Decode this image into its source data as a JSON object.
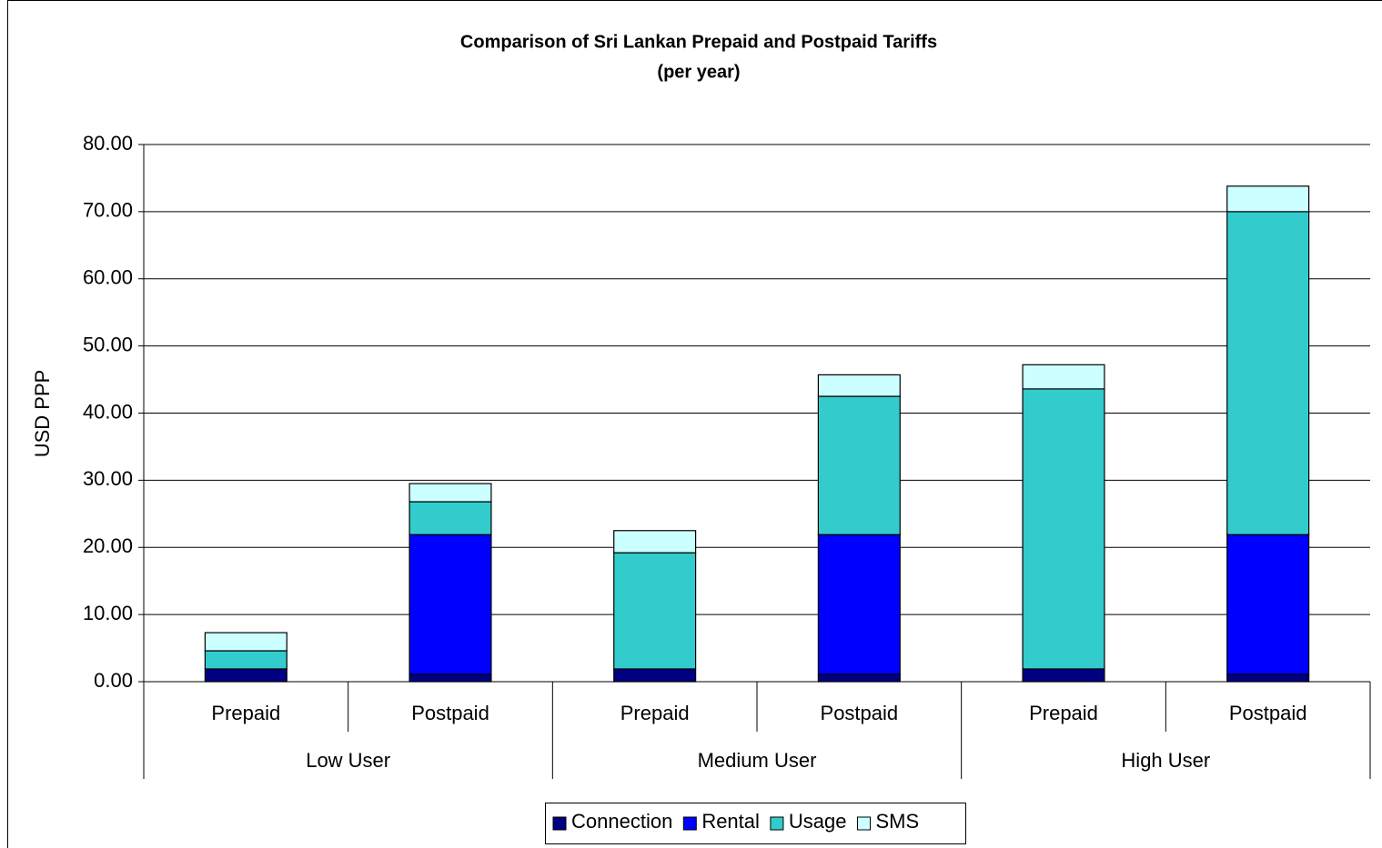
{
  "chart_data": {
    "type": "stacked-bar",
    "title": "Comparison of Sri Lankan Prepaid and Postpaid Tariffs",
    "subtitle": "(per year)",
    "y_label": "USD PPP",
    "categories": [
      "Prepaid",
      "Postpaid",
      "Prepaid",
      "Postpaid",
      "Prepaid",
      "Postpaid"
    ],
    "groups": [
      "Low User",
      "Medium User",
      "High User"
    ],
    "series": [
      {
        "name": "Connection",
        "color": "#000080",
        "values": [
          1.9,
          1.1,
          1.9,
          1.1,
          1.9,
          1.1
        ]
      },
      {
        "name": "Rental",
        "color": "#0000ff",
        "values": [
          0,
          20.8,
          0,
          20.8,
          0,
          20.8
        ]
      },
      {
        "name": "Usage",
        "color": "#33cccc",
        "values": [
          2.7,
          4.9,
          17.3,
          20.6,
          41.7,
          48.1
        ]
      },
      {
        "name": "SMS",
        "color": "#ccffff",
        "values": [
          2.7,
          2.7,
          3.3,
          3.2,
          3.6,
          3.8
        ]
      }
    ],
    "ylim": [
      0,
      80
    ],
    "yticks": [
      {
        "value": 0,
        "label": "0.00"
      },
      {
        "value": 10,
        "label": "10.00"
      },
      {
        "value": 20,
        "label": "20.00"
      },
      {
        "value": 30,
        "label": "30.00"
      },
      {
        "value": 40,
        "label": "40.00"
      },
      {
        "value": 50,
        "label": "50.00"
      },
      {
        "value": 60,
        "label": "60.00"
      },
      {
        "value": 70,
        "label": "70.00"
      },
      {
        "value": 80,
        "label": "80.00"
      }
    ],
    "grid": true,
    "legend": "bottom"
  }
}
